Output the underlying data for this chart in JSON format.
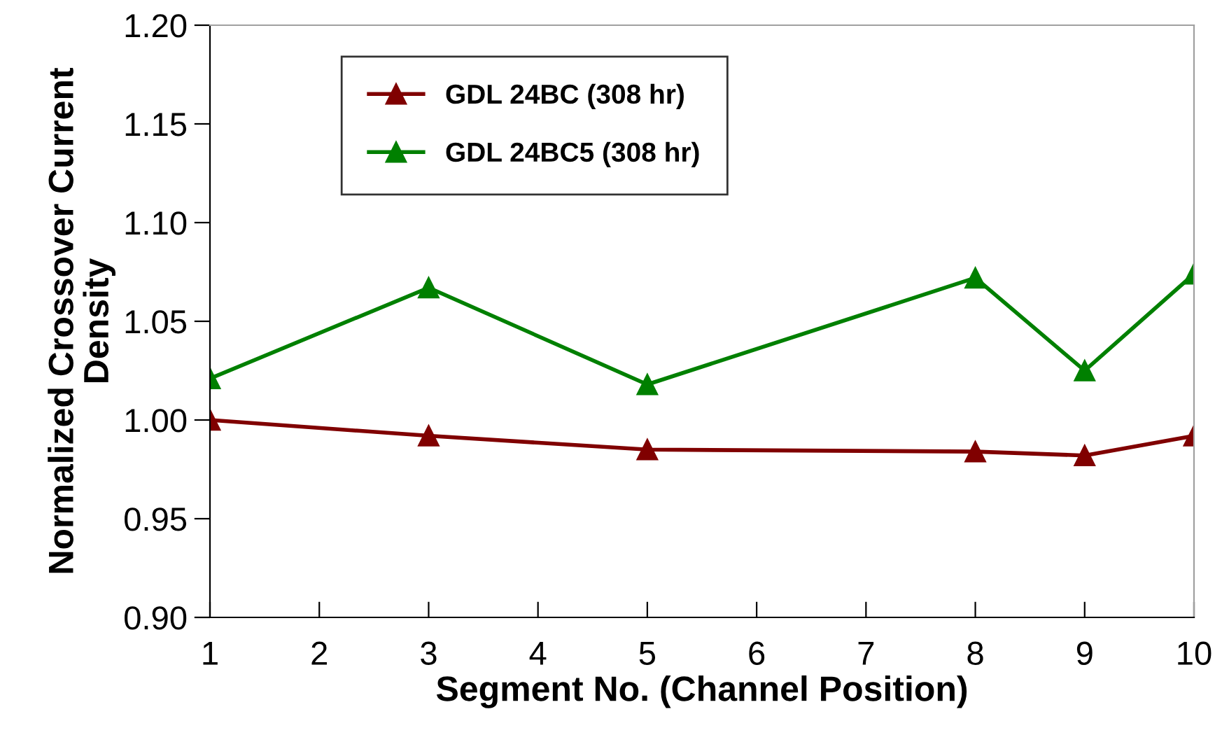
{
  "chart_data": {
    "type": "line",
    "xlabel": "Segment No. (Channel Position)",
    "ylabel": "Normalized Crossover Current\nDensity",
    "x": [
      1,
      3,
      5,
      8,
      9,
      10
    ],
    "series": [
      {
        "name": "GDL 24BC (308 hr)",
        "color": "#800000",
        "values": [
          1.0,
          0.992,
          0.985,
          0.984,
          0.982,
          0.992
        ]
      },
      {
        "name": "GDL 24BC5 (308 hr)",
        "color": "#008000",
        "values": [
          1.021,
          1.067,
          1.018,
          1.072,
          1.025,
          1.074
        ]
      }
    ],
    "xlim": [
      1,
      10
    ],
    "xticks": [
      1,
      2,
      3,
      4,
      5,
      6,
      7,
      8,
      9,
      10
    ],
    "ylim": [
      0.9,
      1.2
    ],
    "yticks": [
      {
        "value": 0.9,
        "label": "0.90"
      },
      {
        "value": 0.95,
        "label": "0.95"
      },
      {
        "value": 1.0,
        "label": "1.00"
      },
      {
        "value": 1.05,
        "label": "1.05"
      },
      {
        "value": 1.1,
        "label": "1.10"
      },
      {
        "value": 1.15,
        "label": "1.15"
      },
      {
        "value": 1.2,
        "label": "1.20"
      }
    ],
    "grid": false,
    "legend": "top left",
    "marker": "triangle",
    "line_style": "solid"
  }
}
